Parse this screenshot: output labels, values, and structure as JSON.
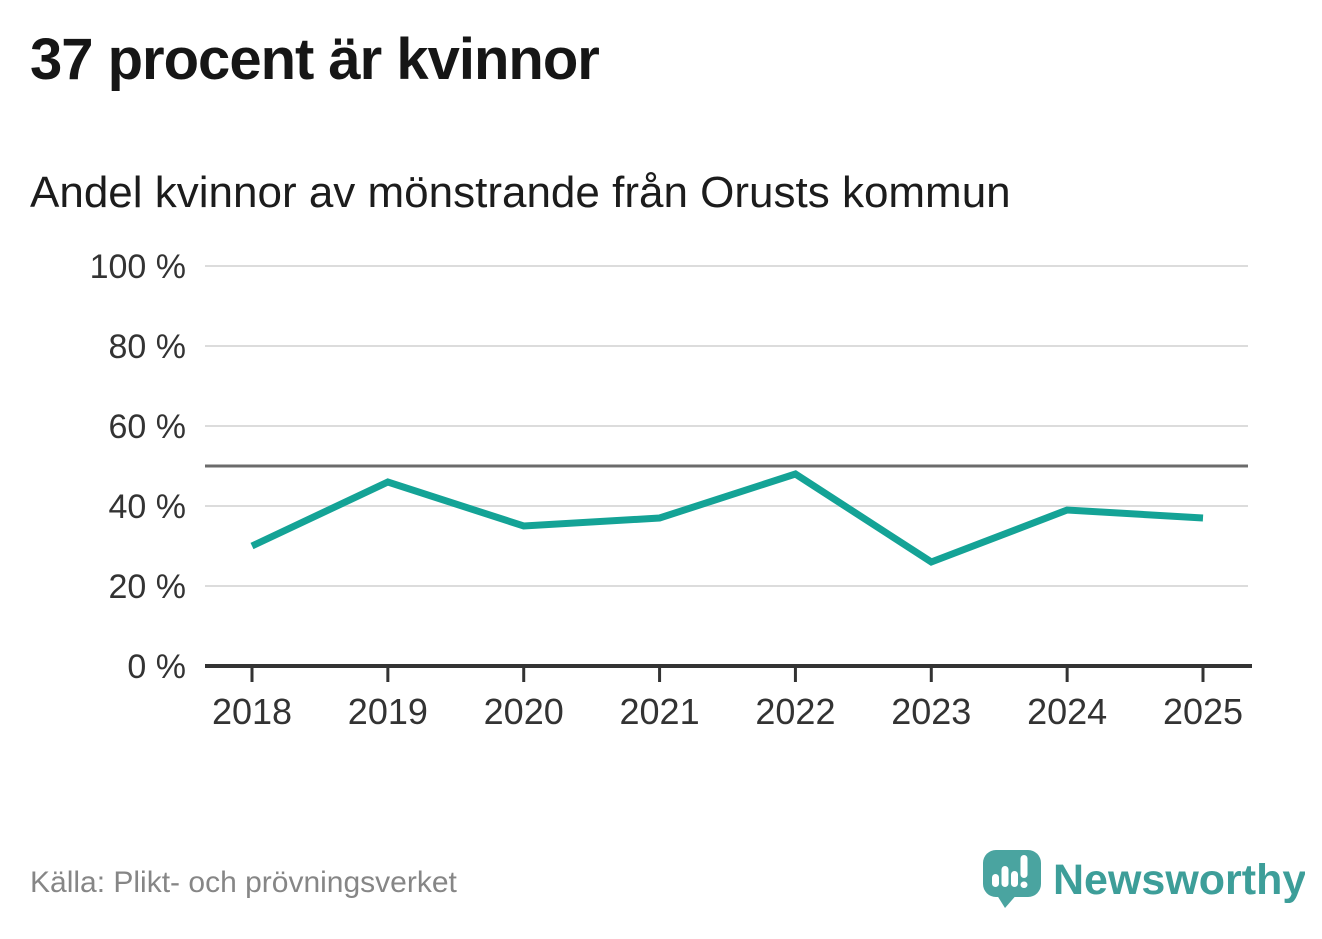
{
  "header": {
    "title": "37 procent är kvinnor",
    "subtitle": "Andel kvinnor av mönstrande från Orusts kommun"
  },
  "footer": {
    "source": "Källa: Plikt- och prövningsverket",
    "brand": "Newsworthy"
  },
  "chart_data": {
    "type": "line",
    "title": "Andel kvinnor av mönstrande från Orusts kommun",
    "x": [
      2018,
      2019,
      2020,
      2021,
      2022,
      2023,
      2024,
      2025
    ],
    "series": [
      {
        "name": "Andel kvinnor av mönstrande",
        "values": [
          30,
          46,
          35,
          37,
          48,
          26,
          39,
          37
        ]
      }
    ],
    "unit": "%",
    "ylim": [
      0,
      100
    ],
    "yticks": [
      0,
      20,
      40,
      60,
      80,
      100
    ],
    "ytick_suffix": " %",
    "reference_line": 50,
    "grid": true,
    "legend": "none",
    "line_color": "#14a396",
    "axis_color": "#333333",
    "tick_label_color": "#333333",
    "grid_color": "#dcdcdc",
    "reference_line_color": "#6b6b6b"
  },
  "colors": {
    "brand_teal_bubble": "#4aa4a0",
    "brand_teal_text": "#3d9e99",
    "title_text": "#161616",
    "muted_text": "#868686"
  }
}
